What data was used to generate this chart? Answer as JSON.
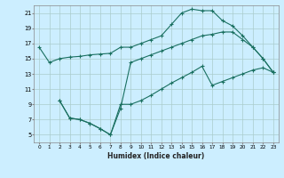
{
  "xlabel": "Humidex (Indice chaleur)",
  "bg_color": "#cceeff",
  "grid_color": "#aacccc",
  "line_color": "#1a7060",
  "line1_x": [
    0,
    1,
    2,
    3,
    4,
    5,
    6,
    7,
    8,
    9,
    10,
    11,
    12,
    13,
    14,
    15,
    16,
    17,
    18,
    19,
    20,
    21,
    22,
    23
  ],
  "line1_y": [
    16.5,
    14.5,
    15.0,
    15.2,
    15.3,
    15.5,
    15.6,
    15.7,
    16.5,
    16.5,
    17.0,
    17.5,
    18.0,
    19.5,
    21.0,
    21.5,
    21.3,
    21.3,
    20.0,
    19.3,
    18.0,
    16.5,
    15.0,
    13.2
  ],
  "line2_x": [
    2,
    3,
    4,
    5,
    6,
    7,
    8,
    9,
    10,
    11,
    12,
    13,
    14,
    15,
    16,
    17,
    18,
    19,
    20,
    21,
    22,
    23
  ],
  "line2_y": [
    9.5,
    7.2,
    7.0,
    6.5,
    5.8,
    5.0,
    9.0,
    9.0,
    9.5,
    10.2,
    11.0,
    11.8,
    12.5,
    13.2,
    14.0,
    11.5,
    12.0,
    12.5,
    13.0,
    13.5,
    13.8,
    13.2
  ],
  "line3_x": [
    2,
    3,
    4,
    5,
    6,
    7,
    8,
    9,
    10,
    11,
    12,
    13,
    14,
    15,
    16,
    17,
    18,
    19,
    20,
    21,
    22,
    23
  ],
  "line3_y": [
    9.5,
    7.2,
    7.0,
    6.5,
    5.8,
    5.0,
    8.5,
    14.5,
    15.0,
    15.5,
    16.0,
    16.5,
    17.0,
    17.5,
    18.0,
    18.2,
    18.5,
    18.5,
    17.5,
    16.5,
    15.0,
    13.2
  ],
  "xlim": [
    -0.5,
    23.5
  ],
  "ylim": [
    4,
    22
  ],
  "xticks": [
    0,
    1,
    2,
    3,
    4,
    5,
    6,
    7,
    8,
    9,
    10,
    11,
    12,
    13,
    14,
    15,
    16,
    17,
    18,
    19,
    20,
    21,
    22,
    23
  ],
  "yticks": [
    5,
    7,
    9,
    11,
    13,
    15,
    17,
    19,
    21
  ]
}
